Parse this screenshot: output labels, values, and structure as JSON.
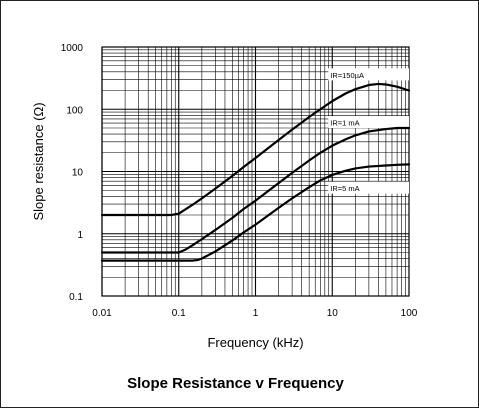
{
  "chart_data": {
    "type": "line",
    "title": "Slope Resistance v Frequency",
    "xlabel": "Frequency (kHz)",
    "ylabel": "Slope resistance  (Ω)",
    "x_scale": "log",
    "y_scale": "log",
    "xlim": [
      0.01,
      100
    ],
    "ylim": [
      0.1,
      1000
    ],
    "grid": true,
    "x_ticks": [
      {
        "value": 0.01,
        "label": "0.01"
      },
      {
        "value": 0.1,
        "label": "0.1"
      },
      {
        "value": 1,
        "label": "1"
      },
      {
        "value": 10,
        "label": "10"
      },
      {
        "value": 100,
        "label": "100"
      }
    ],
    "y_ticks": [
      {
        "value": 0.1,
        "label": "0.1"
      },
      {
        "value": 1,
        "label": "1"
      },
      {
        "value": 10,
        "label": "10"
      },
      {
        "value": 100,
        "label": "100"
      },
      {
        "value": 1000,
        "label": "1000"
      }
    ],
    "series": [
      {
        "name": "IR=150µA",
        "label_at": [
          10,
          350
        ],
        "x": [
          0.01,
          0.05,
          0.08,
          0.1,
          0.15,
          0.2,
          0.3,
          0.5,
          0.7,
          1,
          2,
          3,
          5,
          7,
          10,
          15,
          20,
          30,
          40,
          50,
          70,
          100
        ],
        "y": [
          2,
          2,
          2,
          2.1,
          2.9,
          3.7,
          5.3,
          8.5,
          11.8,
          16.5,
          32,
          47,
          75,
          100,
          135,
          180,
          210,
          245,
          255,
          250,
          230,
          200
        ]
      },
      {
        "name": "IR=1 mA",
        "label_at": [
          10,
          60
        ],
        "x": [
          0.01,
          0.05,
          0.1,
          0.12,
          0.15,
          0.2,
          0.3,
          0.5,
          0.7,
          1,
          2,
          3,
          5,
          7,
          10,
          15,
          20,
          30,
          50,
          70,
          100
        ],
        "y": [
          0.5,
          0.5,
          0.5,
          0.55,
          0.65,
          0.82,
          1.15,
          1.8,
          2.5,
          3.4,
          6.5,
          9.5,
          15,
          20,
          26,
          33,
          38,
          44,
          48,
          50,
          50
        ]
      },
      {
        "name": "IR=5 mA",
        "label_at": [
          10,
          5.3
        ],
        "x": [
          0.01,
          0.1,
          0.15,
          0.18,
          0.2,
          0.3,
          0.5,
          0.7,
          1,
          2,
          3,
          5,
          7,
          10,
          15,
          20,
          30,
          50,
          70,
          100
        ],
        "y": [
          0.37,
          0.37,
          0.37,
          0.38,
          0.4,
          0.52,
          0.78,
          1.05,
          1.4,
          2.6,
          3.7,
          5.6,
          7.2,
          8.8,
          10.3,
          11.2,
          12,
          12.5,
          12.8,
          13
        ]
      }
    ]
  }
}
